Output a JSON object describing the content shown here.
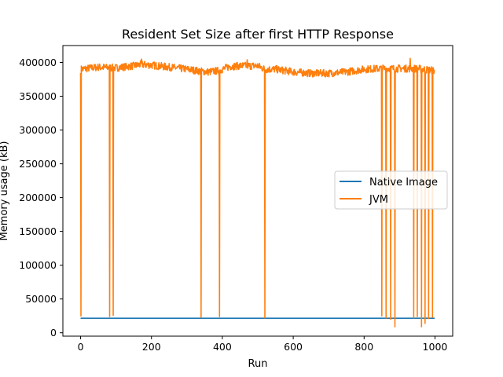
{
  "chart_data": {
    "type": "line",
    "title": "Resident Set Size after first HTTP Response",
    "xlabel": "Run",
    "ylabel": "Memory usage (kB)",
    "xlim": [
      -50,
      1050
    ],
    "ylim": [
      -5000,
      425000
    ],
    "xticks": [
      0,
      200,
      400,
      600,
      800,
      1000
    ],
    "yticks": [
      0,
      50000,
      100000,
      150000,
      200000,
      250000,
      300000,
      350000,
      400000
    ],
    "grid": false,
    "legend_position": "center-right",
    "series": [
      {
        "name": "Native Image",
        "color": "#1f77b4",
        "x": [
          0,
          999
        ],
        "y": [
          21500,
          21500
        ]
      },
      {
        "name": "JVM",
        "color": "#ff7f0e",
        "baseline": [
          [
            0,
            390000
          ],
          [
            50,
            393000
          ],
          [
            100,
            392000
          ],
          [
            150,
            395000
          ],
          [
            170,
            397000
          ],
          [
            200,
            396000
          ],
          [
            250,
            393000
          ],
          [
            300,
            390000
          ],
          [
            340,
            387000
          ],
          [
            360,
            386000
          ],
          [
            392,
            388000
          ],
          [
            420,
            394000
          ],
          [
            450,
            395000
          ],
          [
            500,
            395000
          ],
          [
            520,
            390000
          ],
          [
            550,
            390000
          ],
          [
            600,
            386000
          ],
          [
            650,
            384000
          ],
          [
            700,
            384000
          ],
          [
            750,
            386000
          ],
          [
            800,
            390000
          ],
          [
            850,
            391000
          ],
          [
            900,
            391000
          ],
          [
            950,
            391000
          ],
          [
            999,
            388000
          ]
        ],
        "drops": [
          {
            "x": 1,
            "y": 25000
          },
          {
            "x": 82,
            "y": 24000
          },
          {
            "x": 92,
            "y": 26000
          },
          {
            "x": 340,
            "y": 23000
          },
          {
            "x": 392,
            "y": 24000
          },
          {
            "x": 520,
            "y": 22000
          },
          {
            "x": 850,
            "y": 25000
          },
          {
            "x": 862,
            "y": 22000
          },
          {
            "x": 875,
            "y": 20000
          },
          {
            "x": 887,
            "y": 9000
          },
          {
            "x": 940,
            "y": 22000
          },
          {
            "x": 950,
            "y": 24000
          },
          {
            "x": 962,
            "y": 9000
          },
          {
            "x": 972,
            "y": 14000
          },
          {
            "x": 982,
            "y": 21000
          },
          {
            "x": 993,
            "y": 23000
          }
        ],
        "spikes": [
          {
            "x": 172,
            "y": 405000
          },
          {
            "x": 470,
            "y": 404000
          },
          {
            "x": 930,
            "y": 406000
          }
        ]
      }
    ]
  }
}
